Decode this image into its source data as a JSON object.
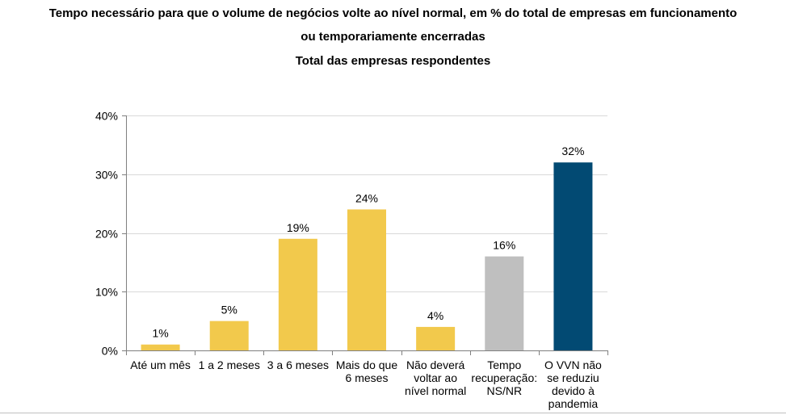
{
  "chart_data": {
    "type": "bar",
    "title_lines": [
      "Tempo necessário para que o volume de negócios volte ao nível normal, em % do total de empresas em funcionamento",
      "ou temporariamente encerradas",
      "Total das empresas respondentes"
    ],
    "categories": [
      [
        "Até um mês"
      ],
      [
        "1 a 2 meses"
      ],
      [
        "3 a 6 meses"
      ],
      [
        "Mais do que",
        "6 meses"
      ],
      [
        "Não deverá",
        "voltar ao",
        "nível normal"
      ],
      [
        "Tempo",
        "recuperação:",
        "NS/NR"
      ],
      [
        "O VVN não",
        "se reduziu",
        "devido à",
        "pandemia"
      ]
    ],
    "values": [
      1,
      5,
      19,
      24,
      4,
      16,
      32
    ],
    "value_labels": [
      "1%",
      "5%",
      "19%",
      "24%",
      "4%",
      "16%",
      "32%"
    ],
    "bar_colors": [
      "#f2c94c",
      "#f2c94c",
      "#f2c94c",
      "#f2c94c",
      "#f2c94c",
      "#bfbfbf",
      "#024a73"
    ],
    "y_ticks": [
      0,
      10,
      20,
      30,
      40
    ],
    "y_tick_labels": [
      "0%",
      "10%",
      "20%",
      "30%",
      "40%"
    ],
    "ylim": [
      0,
      40
    ],
    "grid": true,
    "xlabel": "",
    "ylabel": ""
  }
}
